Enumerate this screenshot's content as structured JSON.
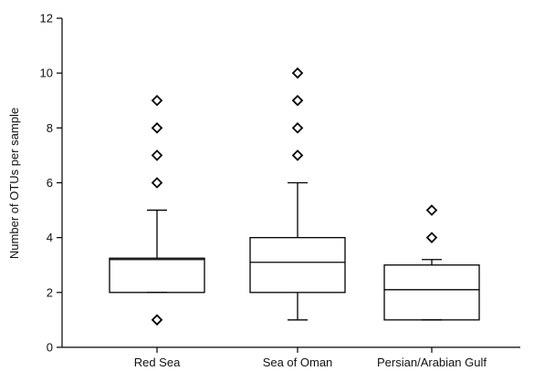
{
  "chart_data": {
    "type": "box",
    "title": "",
    "xlabel": "",
    "ylabel": "Number of OTUs per sample",
    "ylim": [
      0,
      12
    ],
    "yticks": [
      0,
      2,
      4,
      6,
      8,
      10,
      12
    ],
    "grid": false,
    "categories": [
      "Red Sea",
      "Sea of Oman",
      "Persian/Arabian Gulf"
    ],
    "boxes": [
      {
        "category": "Red Sea",
        "whisker_low": 2,
        "q1": 2,
        "median": 3.2,
        "q3": 3.25,
        "whisker_high": 5,
        "outliers": [
          1,
          6,
          7,
          8,
          9
        ]
      },
      {
        "category": "Sea of Oman",
        "whisker_low": 1,
        "q1": 2,
        "median": 3.1,
        "q3": 4,
        "whisker_high": 6,
        "outliers": [
          7,
          8,
          9,
          10
        ]
      },
      {
        "category": "Persian/Arabian Gulf",
        "whisker_low": 1,
        "q1": 1,
        "median": 2.1,
        "q3": 3,
        "whisker_high": 3.2,
        "outliers": [
          4,
          5
        ]
      }
    ]
  }
}
